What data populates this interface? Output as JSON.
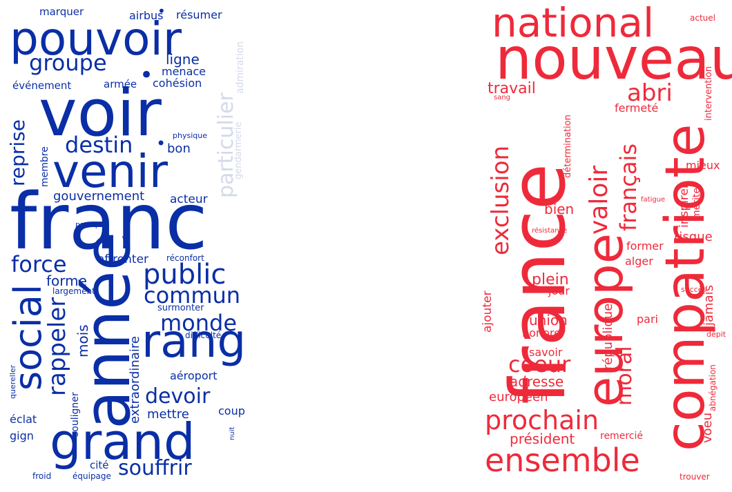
{
  "colors": {
    "left_primary": "#0a2ea6",
    "left_faded": "#d3d9ea",
    "right_primary": "#ee2a3a"
  },
  "left_cloud": {
    "words": [
      {
        "id": "marquer",
        "text": "marquer"
      },
      {
        "id": "airbus",
        "text": "airbus"
      },
      {
        "id": "resumer",
        "text": "résumer"
      },
      {
        "id": "pouvoir",
        "text": "pouvoir"
      },
      {
        "id": "groupe",
        "text": "groupe"
      },
      {
        "id": "ligne",
        "text": "ligne"
      },
      {
        "id": "menace",
        "text": "menace"
      },
      {
        "id": "evenement",
        "text": "événement"
      },
      {
        "id": "armee",
        "text": "armée"
      },
      {
        "id": "cohesion",
        "text": "cohésion"
      },
      {
        "id": "admiration",
        "text": "admiration"
      },
      {
        "id": "particulier",
        "text": "particulier"
      },
      {
        "id": "gendarmerie",
        "text": "gendarmerie"
      },
      {
        "id": "voir",
        "text": "voir"
      },
      {
        "id": "reprise",
        "text": "reprise"
      },
      {
        "id": "physique",
        "text": "physique"
      },
      {
        "id": "destin",
        "text": "destin"
      },
      {
        "id": "bon",
        "text": "bon"
      },
      {
        "id": "membre",
        "text": "membre"
      },
      {
        "id": "venir",
        "text": "venir"
      },
      {
        "id": "gouvernement",
        "text": "gouvernement"
      },
      {
        "id": "acteur",
        "text": "acteur"
      },
      {
        "id": "franc",
        "text": "franc"
      },
      {
        "id": "prompt",
        "text": "prompt"
      },
      {
        "id": "force",
        "text": "force"
      },
      {
        "id": "affronter",
        "text": "affronter"
      },
      {
        "id": "reconfort",
        "text": "réconfort"
      },
      {
        "id": "social",
        "text": "social"
      },
      {
        "id": "public",
        "text": "public"
      },
      {
        "id": "forme",
        "text": "forme"
      },
      {
        "id": "largement",
        "text": "largement"
      },
      {
        "id": "commun",
        "text": "commun"
      },
      {
        "id": "surmonter",
        "text": "surmonter"
      },
      {
        "id": "rappeler",
        "text": "rappeler"
      },
      {
        "id": "annee",
        "text": "année"
      },
      {
        "id": "monde",
        "text": "monde"
      },
      {
        "id": "mois",
        "text": "mois"
      },
      {
        "id": "difficulte",
        "text": "difficulté"
      },
      {
        "id": "rang",
        "text": "rang"
      },
      {
        "id": "extraordinaire",
        "text": "extraordinaire"
      },
      {
        "id": "aeroport",
        "text": "aéroport"
      },
      {
        "id": "souligner",
        "text": "souligner"
      },
      {
        "id": "quereller",
        "text": "quereller"
      },
      {
        "id": "devoir",
        "text": "devoir"
      },
      {
        "id": "eclat",
        "text": "éclat"
      },
      {
        "id": "mettre",
        "text": "mettre"
      },
      {
        "id": "coup",
        "text": "coup"
      },
      {
        "id": "gign",
        "text": "gign"
      },
      {
        "id": "nuit",
        "text": "nuit"
      },
      {
        "id": "grand",
        "text": "grand"
      },
      {
        "id": "cite",
        "text": "cité"
      },
      {
        "id": "souffrir",
        "text": "souffrir"
      },
      {
        "id": "froid",
        "text": "froid"
      },
      {
        "id": "equipage",
        "text": "équipage"
      }
    ]
  },
  "right_cloud": {
    "words": [
      {
        "id": "national",
        "text": "national"
      },
      {
        "id": "actuel",
        "text": "actuel"
      },
      {
        "id": "nouveau",
        "text": "nouveau"
      },
      {
        "id": "intervention",
        "text": "intervention"
      },
      {
        "id": "travail",
        "text": "travail"
      },
      {
        "id": "sang",
        "text": "sang"
      },
      {
        "id": "abri",
        "text": "abri"
      },
      {
        "id": "fermete",
        "text": "fermeté"
      },
      {
        "id": "determination",
        "text": "détermination"
      },
      {
        "id": "france",
        "text": "france"
      },
      {
        "id": "exclusion",
        "text": "exclusion"
      },
      {
        "id": "europe",
        "text": "europe"
      },
      {
        "id": "valoir",
        "text": "valoir"
      },
      {
        "id": "francais",
        "text": "français"
      },
      {
        "id": "compatriote",
        "text": "compatriote"
      },
      {
        "id": "mieux",
        "text": "mieux"
      },
      {
        "id": "inspirer",
        "text": "inspirer"
      },
      {
        "id": "meriter",
        "text": "mériter"
      },
      {
        "id": "fatigue",
        "text": "fatigue"
      },
      {
        "id": "bien",
        "text": "bien"
      },
      {
        "id": "resistance",
        "text": "résistance"
      },
      {
        "id": "risque",
        "text": "risque"
      },
      {
        "id": "former",
        "text": "former"
      },
      {
        "id": "alger",
        "text": "alger"
      },
      {
        "id": "plein",
        "text": "plein"
      },
      {
        "id": "jour",
        "text": "jour"
      },
      {
        "id": "succes",
        "text": "succès"
      },
      {
        "id": "jamais",
        "text": "jamais"
      },
      {
        "id": "ajouter",
        "text": "ajouter"
      },
      {
        "id": "republique",
        "text": "république"
      },
      {
        "id": "union",
        "text": "union"
      },
      {
        "id": "pari",
        "text": "pari"
      },
      {
        "id": "honorer",
        "text": "honorer"
      },
      {
        "id": "moral",
        "text": "moral"
      },
      {
        "id": "depit",
        "text": "dépit"
      },
      {
        "id": "savoir",
        "text": "savoir"
      },
      {
        "id": "coeur",
        "text": "coeur"
      },
      {
        "id": "adresse",
        "text": "adresse"
      },
      {
        "id": "europeen",
        "text": "européen"
      },
      {
        "id": "voeu",
        "text": "voeu"
      },
      {
        "id": "abnegation",
        "text": "abnégation"
      },
      {
        "id": "prochain",
        "text": "prochain"
      },
      {
        "id": "president",
        "text": "président"
      },
      {
        "id": "remercie",
        "text": "remercié"
      },
      {
        "id": "ensemble",
        "text": "ensemble"
      },
      {
        "id": "trouver",
        "text": "trouver"
      }
    ]
  }
}
